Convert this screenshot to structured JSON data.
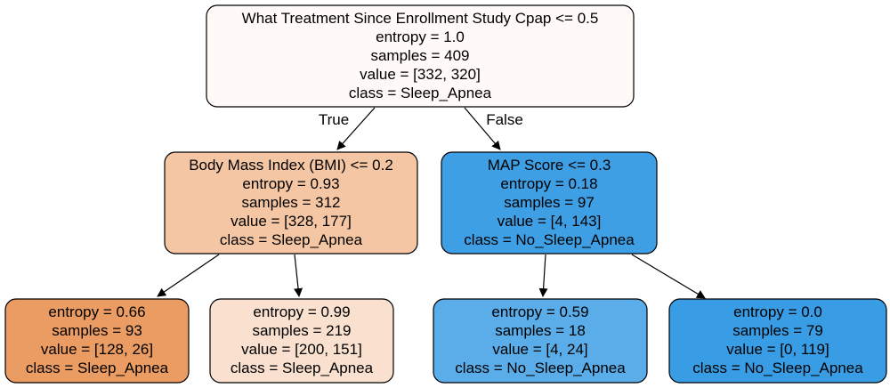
{
  "nodes": [
    {
      "id": "root",
      "fill": "#fffaf7",
      "lines": [
        "What Treatment Since Enrollment Study Cpap <= 0.5",
        "entropy = 1.0",
        "samples = 409",
        "value = [332, 320]",
        "class = Sleep_Apnea"
      ]
    },
    {
      "id": "bmi",
      "fill": "#f4c6a4",
      "lines": [
        "Body Mass Index (BMI) <= 0.2",
        "entropy = 0.93",
        "samples = 312",
        "value = [328, 177]",
        "class = Sleep_Apnea"
      ]
    },
    {
      "id": "map",
      "fill": "#3f9fe5",
      "lines": [
        "MAP Score <= 0.3",
        "entropy = 0.18",
        "samples = 97",
        "value = [4, 143]",
        "class = No_Sleep_Apnea"
      ]
    },
    {
      "id": "leaf1",
      "fill": "#eb9c63",
      "lines": [
        "entropy = 0.66",
        "samples = 93",
        "value = [128, 26]",
        "class = Sleep_Apnea"
      ]
    },
    {
      "id": "leaf2",
      "fill": "#f9e0cf",
      "lines": [
        "entropy = 0.99",
        "samples = 219",
        "value = [200, 151]",
        "class = Sleep_Apnea"
      ]
    },
    {
      "id": "leaf3",
      "fill": "#5aade9",
      "lines": [
        "entropy = 0.59",
        "samples = 18",
        "value = [4, 24]",
        "class = No_Sleep_Apnea"
      ]
    },
    {
      "id": "leaf4",
      "fill": "#399de5",
      "lines": [
        "entropy = 0.0",
        "samples = 79",
        "value = [0, 119]",
        "class = No_Sleep_Apnea"
      ]
    }
  ],
  "edges": [
    {
      "from": "root",
      "to": "bmi",
      "label": "True"
    },
    {
      "from": "root",
      "to": "map",
      "label": "False"
    },
    {
      "from": "bmi",
      "to": "leaf1",
      "label": ""
    },
    {
      "from": "bmi",
      "to": "leaf2",
      "label": ""
    },
    {
      "from": "map",
      "to": "leaf3",
      "label": ""
    },
    {
      "from": "map",
      "to": "leaf4",
      "label": ""
    }
  ]
}
